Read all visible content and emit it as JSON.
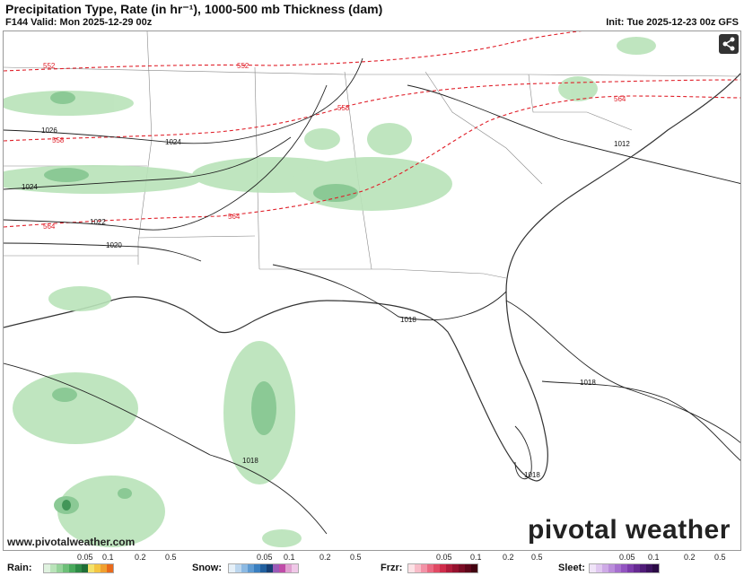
{
  "header": {
    "title": "Precipitation Type, Rate (in hr⁻¹), 1000-500 mb Thickness (dam)",
    "valid": "F144 Valid: Mon 2025-12-29 00z",
    "init": "Init: Tue 2025-12-23 00z GFS"
  },
  "map": {
    "thickness_labels": [
      "552",
      "552",
      "558",
      "558",
      "564",
      "564",
      "564"
    ],
    "isobar_labels": [
      "1026",
      "1024",
      "1024",
      "1022",
      "1020",
      "1012",
      "1018",
      "1018",
      "1018",
      "1018"
    ],
    "colors": {
      "thickness": "#e0202a",
      "isobar": "#222222",
      "rain_light": "#b9e3b9",
      "rain_mid": "#7fc48a",
      "rain_heavy": "#2e8b46"
    }
  },
  "footer": {
    "site": "www.pivotalweather.com",
    "brand": "pivotal weather"
  },
  "legend": {
    "rain": {
      "label": "Rain:",
      "ticks": [
        "0.05",
        "0.1",
        "0.2",
        "0.5"
      ],
      "colors": [
        "#dff2df",
        "#b9e3b9",
        "#95d39a",
        "#6dbf78",
        "#49a95c",
        "#2e8b46",
        "#1f6e37",
        "#f3e26b",
        "#f4c542",
        "#f0a030",
        "#e86a1c"
      ]
    },
    "snow": {
      "label": "Snow:",
      "ticks": [
        "0.05",
        "0.1",
        "0.2",
        "0.5"
      ],
      "colors": [
        "#e6f0f8",
        "#bcd6ee",
        "#8cb9e2",
        "#5f9bd2",
        "#3a7fc0",
        "#215f9e",
        "#163f74",
        "#9c5bb8",
        "#c04ca8",
        "#e0a0d0",
        "#f0c8e8"
      ]
    },
    "frzr": {
      "label": "Frzr:",
      "ticks": [
        "0.05",
        "0.1",
        "0.2",
        "0.5"
      ],
      "colors": [
        "#fde2e6",
        "#f8bcc8",
        "#f292a6",
        "#ea6a82",
        "#e04a64",
        "#cf2c4a",
        "#b01c3a",
        "#95122e",
        "#7a0c24",
        "#5e061a",
        "#420210"
      ]
    },
    "sleet": {
      "label": "Sleet:",
      "ticks": [
        "0.05",
        "0.1",
        "0.2",
        "0.5"
      ],
      "colors": [
        "#f0e4f8",
        "#e0c8f0",
        "#ceaae6",
        "#ba8ddb",
        "#a670cf",
        "#9254c0",
        "#7c3cab",
        "#662a92",
        "#501c78",
        "#3c125e",
        "#2a0a44"
      ]
    }
  }
}
